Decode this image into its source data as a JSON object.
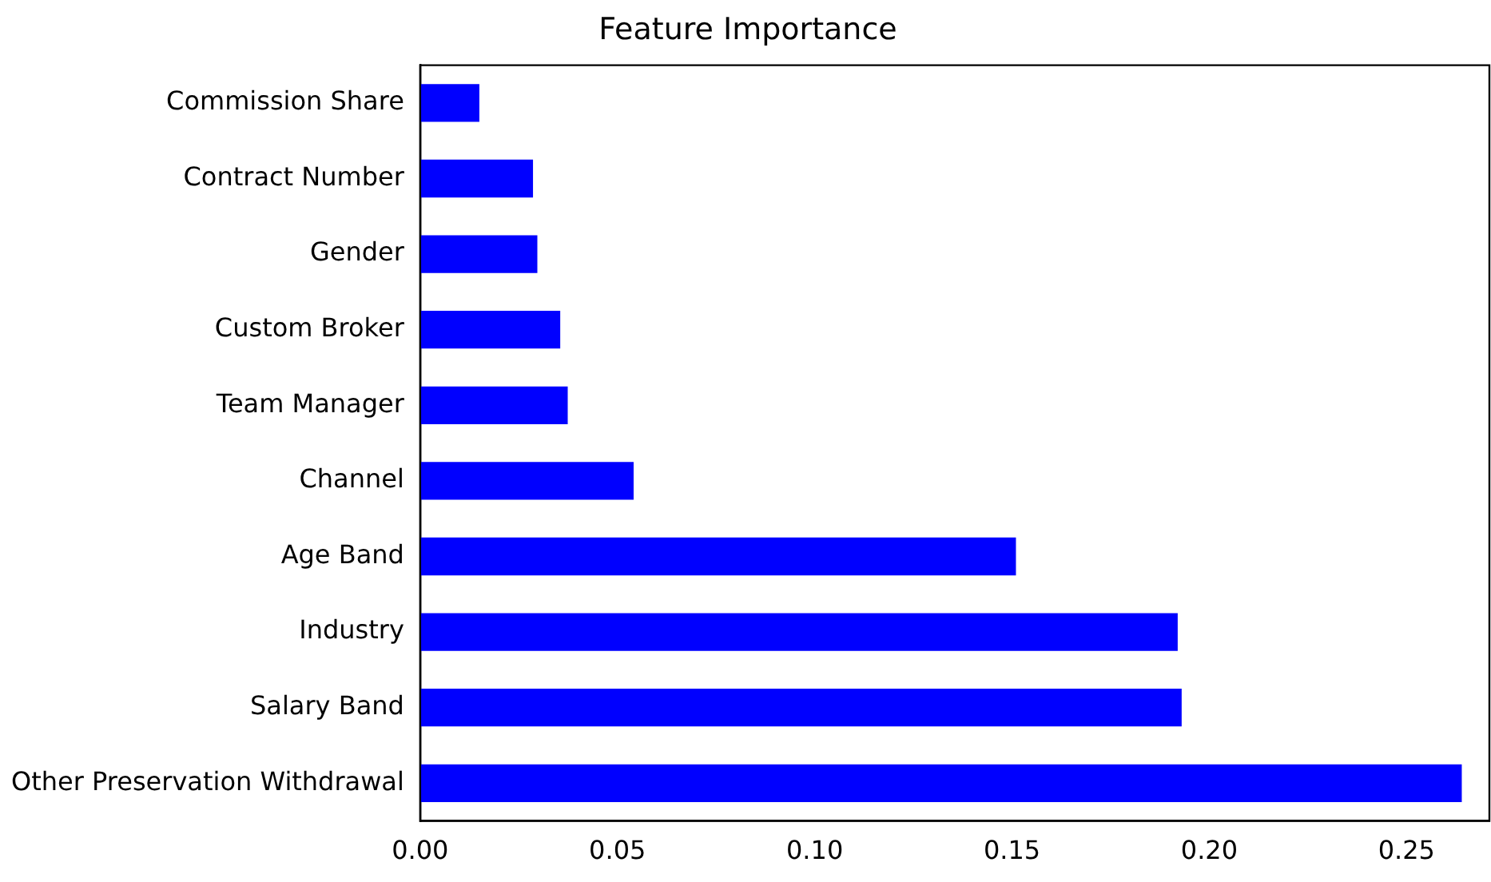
{
  "chart_data": {
    "type": "bar",
    "orientation": "horizontal",
    "title": "Feature Importance",
    "categories": [
      "Commission Share",
      "Contract Number",
      "Gender",
      "Custom Broker",
      "Team Manager",
      "Channel",
      "Age Band",
      "Industry",
      "Salary Band",
      "Other Preservation Withdrawal"
    ],
    "values": [
      0.015,
      0.0286,
      0.0297,
      0.0355,
      0.0374,
      0.0541,
      0.151,
      0.192,
      0.193,
      0.264
    ],
    "color": "#0000ff",
    "xlim": [
      0,
      0.271
    ],
    "xticks": [
      {
        "value": 0,
        "label": "0.00"
      },
      {
        "value": 0.05,
        "label": "0.05"
      },
      {
        "value": 0.1,
        "label": "0.10"
      },
      {
        "value": 0.15,
        "label": "0.15"
      },
      {
        "value": 0.2,
        "label": "0.20"
      },
      {
        "value": 0.25,
        "label": "0.25"
      }
    ],
    "grid": false,
    "legend": false
  }
}
